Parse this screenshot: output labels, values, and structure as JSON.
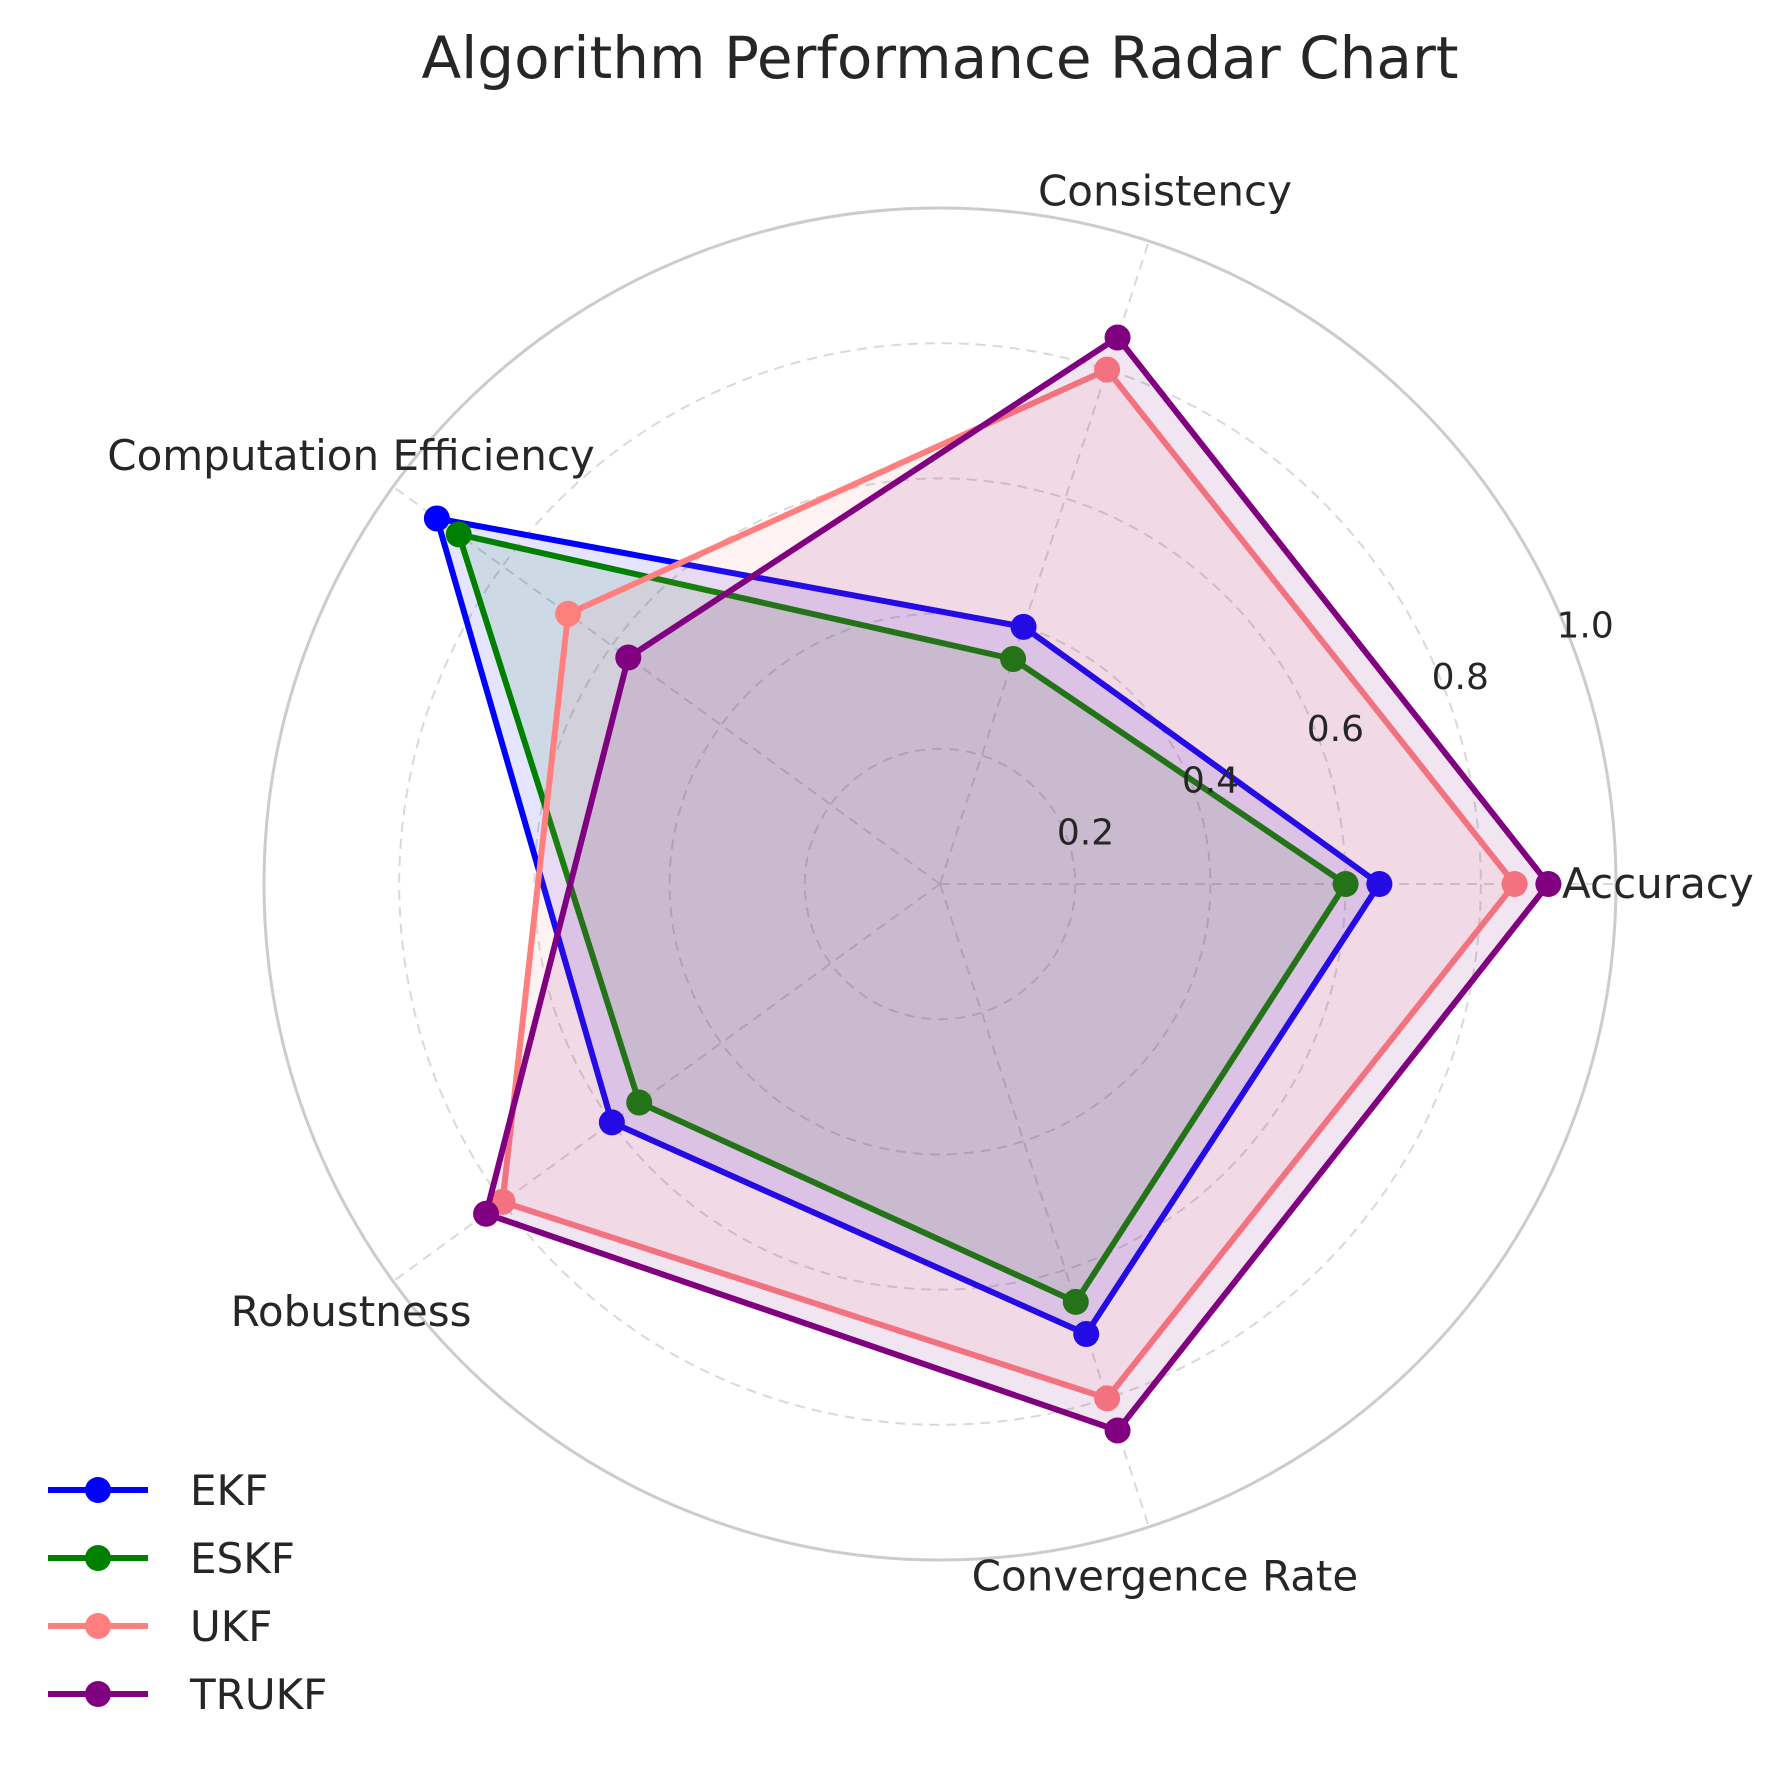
{
  "chart_data": {
    "type": "radar",
    "title": "Algorithm Performance Radar Chart",
    "axes": [
      "Accuracy",
      "Consistency",
      "Computation Efficiency",
      "Robustness",
      "Convergence Rate"
    ],
    "rlim": [
      0,
      1.0
    ],
    "rticks": [
      0.2,
      0.4,
      0.6,
      0.8,
      1.0
    ],
    "rtick_labels": [
      "0.2",
      "0.4",
      "0.6",
      "0.8",
      "1.0"
    ],
    "grid": true,
    "legend_position": "lower-left",
    "series": [
      {
        "name": "EKF",
        "values": [
          0.65,
          0.4,
          0.92,
          0.6,
          0.7
        ],
        "color": "#0000ff"
      },
      {
        "name": "ESKF",
        "values": [
          0.6,
          0.35,
          0.88,
          0.55,
          0.65
        ],
        "color": "#008000"
      },
      {
        "name": "UKF",
        "values": [
          0.85,
          0.8,
          0.68,
          0.8,
          0.8
        ],
        "color": "#ff7f7f"
      },
      {
        "name": "TRUKF",
        "values": [
          0.9,
          0.85,
          0.57,
          0.83,
          0.85
        ],
        "color": "#800080"
      }
    ]
  }
}
